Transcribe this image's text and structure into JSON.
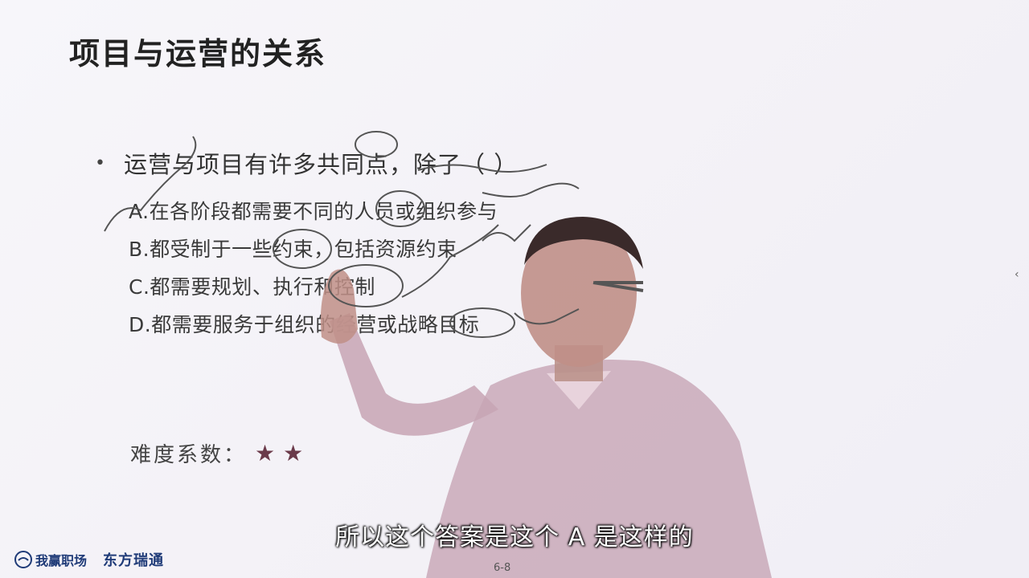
{
  "slide": {
    "title": "项目与运营的关系",
    "question": "运营与项目有许多共同点，除了（    ）",
    "bullet": "•",
    "options": [
      "A.在各阶段都需要不同的人员或组织参与",
      "B.都受制于一些约束，包括资源约束",
      "C.都需要规划、执行和控制",
      "D.都需要服务于组织的经营或战略目标"
    ],
    "difficulty_label": "难度系数：",
    "difficulty_stars": 2,
    "star_glyph": "★",
    "page_number": "6-8"
  },
  "video": {
    "subtitle": "所以这个答案是这个 A 是这样的"
  },
  "footer": {
    "logo_left": "我赢职场",
    "logo_right": "东方瑞通"
  },
  "colors": {
    "title": "#222222",
    "star": "#6b3a4a",
    "logo": "#1f3b78",
    "annotation_ink": "#555555"
  },
  "icons": {
    "logo_mark": "handshake-logo-icon",
    "edge": "chevron-left-icon"
  }
}
